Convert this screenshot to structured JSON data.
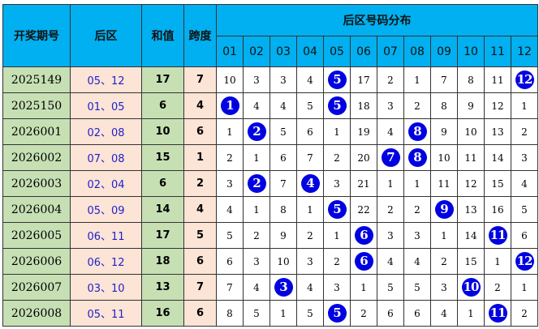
{
  "header": {
    "issue": "开奖期号",
    "back": "后区",
    "sum": "和值",
    "span": "跨度",
    "distribution": "后区号码分布",
    "numbers": [
      "01",
      "02",
      "03",
      "04",
      "05",
      "06",
      "07",
      "08",
      "09",
      "10",
      "11",
      "12"
    ]
  },
  "rows": [
    {
      "issue": "2025149",
      "back": "05、12",
      "sum": "17",
      "span": "7",
      "cells": [
        "10",
        "3",
        "3",
        "4",
        "5",
        "17",
        "2",
        "1",
        "7",
        "8",
        "11",
        "12"
      ],
      "hits": [
        5,
        12
      ]
    },
    {
      "issue": "2025150",
      "back": "01、05",
      "sum": "6",
      "span": "4",
      "cells": [
        "1",
        "4",
        "4",
        "5",
        "5",
        "18",
        "3",
        "2",
        "8",
        "9",
        "12",
        "1"
      ],
      "hits": [
        1,
        5
      ]
    },
    {
      "issue": "2026001",
      "back": "02、08",
      "sum": "10",
      "span": "6",
      "cells": [
        "1",
        "2",
        "5",
        "6",
        "1",
        "19",
        "4",
        "8",
        "9",
        "10",
        "13",
        "2"
      ],
      "hits": [
        2,
        8
      ]
    },
    {
      "issue": "2026002",
      "back": "07、08",
      "sum": "15",
      "span": "1",
      "cells": [
        "2",
        "1",
        "6",
        "7",
        "2",
        "20",
        "7",
        "8",
        "10",
        "11",
        "14",
        "3"
      ],
      "hits": [
        7,
        8
      ]
    },
    {
      "issue": "2026003",
      "back": "02、04",
      "sum": "6",
      "span": "2",
      "cells": [
        "3",
        "2",
        "7",
        "4",
        "3",
        "21",
        "1",
        "1",
        "11",
        "12",
        "15",
        "4"
      ],
      "hits": [
        2,
        4
      ]
    },
    {
      "issue": "2026004",
      "back": "05、09",
      "sum": "14",
      "span": "4",
      "cells": [
        "4",
        "1",
        "8",
        "1",
        "5",
        "22",
        "2",
        "2",
        "9",
        "13",
        "16",
        "5"
      ],
      "hits": [
        5,
        9
      ]
    },
    {
      "issue": "2026005",
      "back": "06、11",
      "sum": "17",
      "span": "5",
      "cells": [
        "5",
        "2",
        "9",
        "2",
        "1",
        "6",
        "3",
        "3",
        "1",
        "14",
        "11",
        "6"
      ],
      "hits": [
        6,
        11
      ]
    },
    {
      "issue": "2026006",
      "back": "06、12",
      "sum": "18",
      "span": "6",
      "cells": [
        "6",
        "3",
        "10",
        "3",
        "2",
        "6",
        "4",
        "4",
        "2",
        "15",
        "1",
        "12"
      ],
      "hits": [
        6,
        12
      ]
    },
    {
      "issue": "2026007",
      "back": "03、10",
      "sum": "13",
      "span": "7",
      "cells": [
        "7",
        "4",
        "3",
        "4",
        "3",
        "1",
        "5",
        "5",
        "3",
        "10",
        "2",
        "1"
      ],
      "hits": [
        3,
        10
      ]
    },
    {
      "issue": "2026008",
      "back": "05、11",
      "sum": "16",
      "span": "6",
      "cells": [
        "8",
        "5",
        "1",
        "5",
        "5",
        "2",
        "6",
        "6",
        "4",
        "1",
        "11",
        "2"
      ],
      "hits": [
        5,
        11
      ]
    }
  ],
  "colors": {
    "header": "#00b0f0",
    "green": "#c6e0b4",
    "peach": "#fce4d6",
    "ball": "#0000e0"
  }
}
